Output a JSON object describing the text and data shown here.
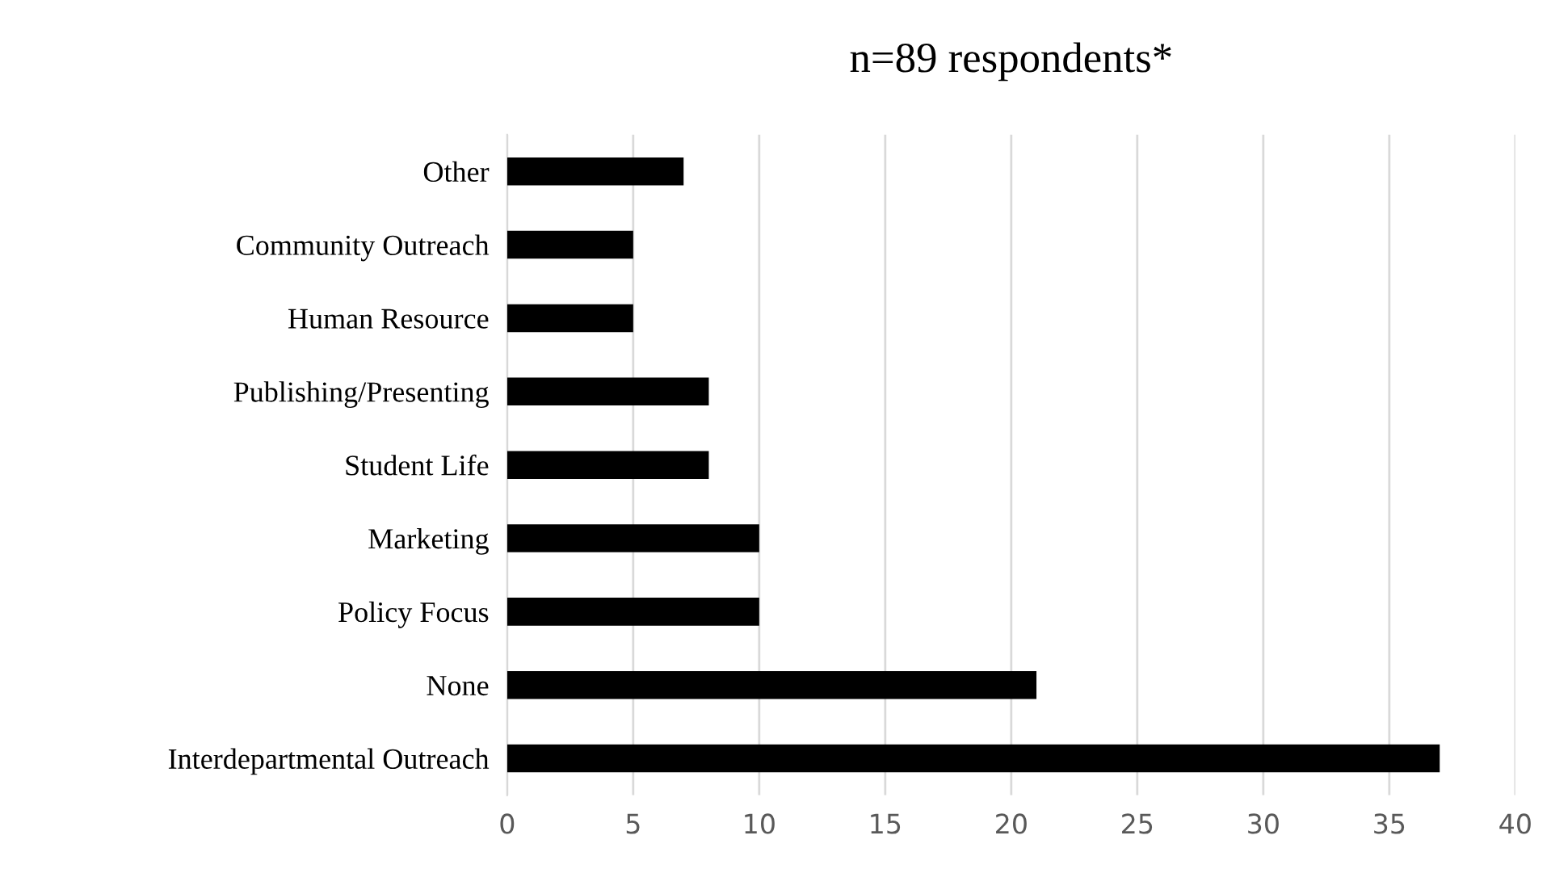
{
  "chart_data": {
    "type": "bar",
    "orientation": "horizontal",
    "title": "n=89 respondents*",
    "categories": [
      "Other",
      "Community Outreach",
      "Human Resource",
      "Publishing/Presenting",
      "Student Life",
      "Marketing",
      "Policy Focus",
      "None",
      "Interdepartmental Outreach"
    ],
    "values": [
      7,
      5,
      5,
      8,
      8,
      10,
      10,
      21,
      37
    ],
    "color": "#000000",
    "xlim": [
      0,
      40
    ],
    "xticks": [
      0,
      5,
      10,
      15,
      20,
      25,
      30,
      35,
      40
    ],
    "grid": "x"
  }
}
